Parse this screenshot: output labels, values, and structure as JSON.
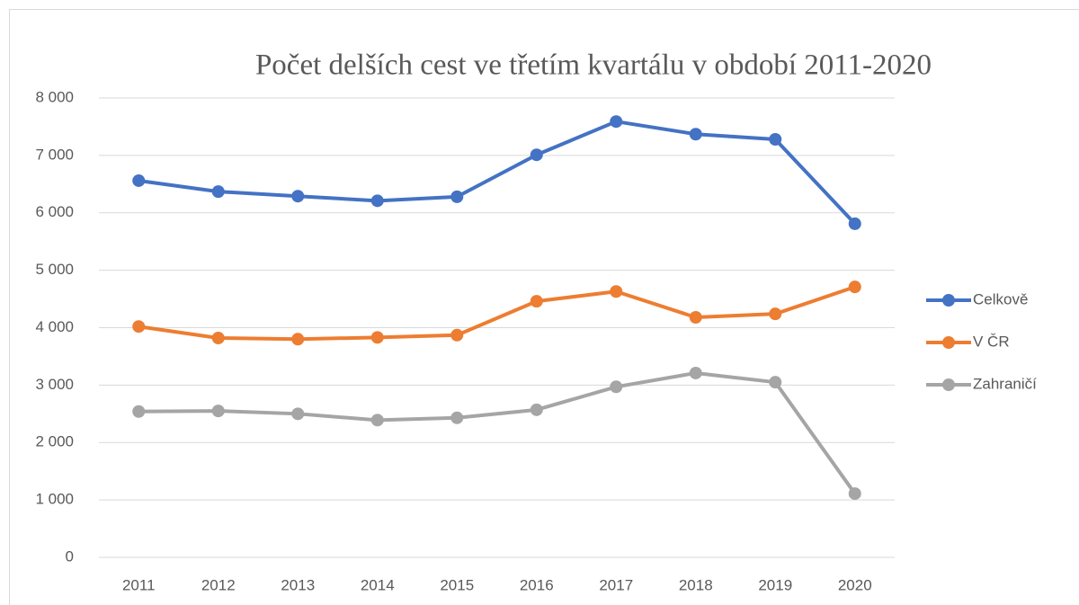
{
  "chart_data": {
    "type": "line",
    "title": "Počet delších cest ve třetím kvartálu v období 2011-2020",
    "categories": [
      "2011",
      "2012",
      "2013",
      "2014",
      "2015",
      "2016",
      "2017",
      "2018",
      "2019",
      "2020"
    ],
    "series": [
      {
        "name": "Celkově",
        "color": "#4472c4",
        "values": [
          6560,
          6370,
          6290,
          6210,
          6280,
          7010,
          7590,
          7370,
          7280,
          5810
        ]
      },
      {
        "name": "V ČR",
        "color": "#ed7d31",
        "values": [
          4020,
          3820,
          3800,
          3830,
          3870,
          4460,
          4630,
          4180,
          4240,
          4710
        ]
      },
      {
        "name": "Zahraničí",
        "color": "#a5a5a5",
        "values": [
          2540,
          2550,
          2500,
          2390,
          2430,
          2570,
          2970,
          3210,
          3050,
          1110
        ]
      }
    ],
    "ylim": [
      0,
      8000
    ],
    "yticks": [
      0,
      {
        "value": 1000,
        "label": "1 000"
      },
      {
        "value": 2000,
        "label": "2 000"
      },
      {
        "value": 3000,
        "label": "3 000"
      },
      {
        "value": 4000,
        "label": "4 000"
      },
      {
        "value": 5000,
        "label": "5 000"
      },
      {
        "value": 6000,
        "label": "6 000"
      },
      {
        "value": 7000,
        "label": "7 000"
      },
      {
        "value": 8000,
        "label": "8 000"
      }
    ],
    "grid": true,
    "legend": "right"
  }
}
